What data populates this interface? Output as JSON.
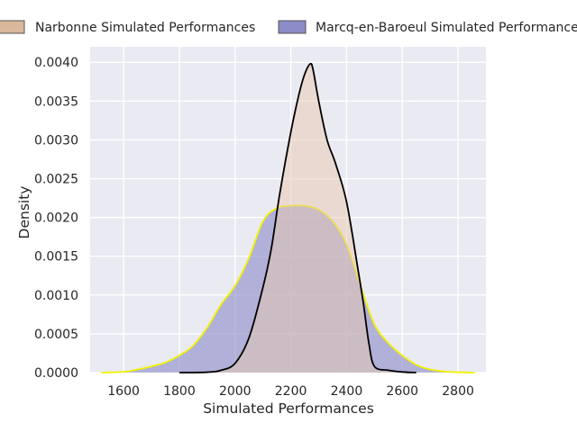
{
  "chart_data": {
    "type": "area",
    "title": "",
    "xlabel": "Simulated Performances",
    "ylabel": "Density",
    "xlim": [
      1480,
      2900
    ],
    "ylim": [
      0,
      0.0042
    ],
    "grid": true,
    "legend_position": "top",
    "x_ticks": [
      1600,
      1800,
      2000,
      2200,
      2400,
      2600,
      2800
    ],
    "x_tick_labels": [
      "1600",
      "1800",
      "2000",
      "2200",
      "2400",
      "2600",
      "2800"
    ],
    "y_ticks": [
      0,
      0.0005,
      0.001,
      0.0015,
      0.002,
      0.0025,
      0.003,
      0.0035,
      0.004
    ],
    "y_tick_labels": [
      "0.0000",
      "0.0005",
      "0.0010",
      "0.0015",
      "0.0020",
      "0.0025",
      "0.0030",
      "0.0035",
      "0.0040"
    ],
    "series": [
      {
        "name": "Marcq-en-Baroeul Simulated Performances",
        "fill_color": "#8c8cc8",
        "line_color": "#f2f200",
        "x": [
          1520,
          1600,
          1650,
          1700,
          1750,
          1800,
          1850,
          1900,
          1950,
          2000,
          2050,
          2100,
          2150,
          2200,
          2250,
          2300,
          2350,
          2400,
          2450,
          2500,
          2550,
          2600,
          2650,
          2700,
          2750,
          2800,
          2860
        ],
        "y": [
          0.0,
          1e-05,
          4e-05,
          8e-05,
          0.00013,
          0.00022,
          0.00035,
          0.00058,
          0.00088,
          0.00112,
          0.00148,
          0.00195,
          0.00212,
          0.00215,
          0.00215,
          0.0021,
          0.00195,
          0.00165,
          0.00112,
          0.00062,
          0.00038,
          0.00022,
          0.0001,
          4e-05,
          1.5e-05,
          5e-06,
          0.0
        ]
      },
      {
        "name": "Narbonne Simulated Performances",
        "fill_color": "#e8c8b0",
        "line_color": "#000000",
        "x": [
          1800,
          1900,
          1950,
          2000,
          2050,
          2100,
          2130,
          2160,
          2200,
          2230,
          2250,
          2270,
          2280,
          2300,
          2330,
          2360,
          2400,
          2440,
          2460,
          2480,
          2500,
          2550,
          2600,
          2650
        ],
        "y": [
          0.0,
          5e-06,
          3e-05,
          0.00012,
          0.00045,
          0.0011,
          0.0016,
          0.0023,
          0.0031,
          0.0036,
          0.00385,
          0.00398,
          0.0039,
          0.0035,
          0.003,
          0.0027,
          0.0022,
          0.00135,
          0.0009,
          0.00038,
          8e-05,
          3e-05,
          8e-06,
          0.0
        ]
      }
    ],
    "legend": [
      {
        "label": "Narbonne Simulated Performances",
        "fill_color": "#d9b99b"
      },
      {
        "label": "Marcq-en-Baroeul Simulated Performances",
        "fill_color": "#8c8cc8"
      }
    ],
    "colors": {
      "plot_background": "#eaeaf2",
      "grid": "#ffffff",
      "text": "#262626"
    }
  }
}
